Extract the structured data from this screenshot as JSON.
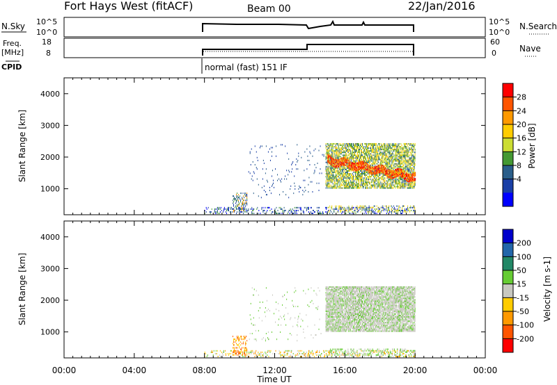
{
  "header": {
    "title": "Fort Hays West (fitACF)",
    "beam": "Beam 00",
    "date": "22/Jan/2016"
  },
  "aux_panels": {
    "nsky_label": "N.Sky",
    "nsky_ticks": [
      "10^5",
      "10^0"
    ],
    "nsky_right_ticks": [
      "10^5",
      "10^0"
    ],
    "nsearch_label": "N.Search",
    "freq_label": "Freq.",
    "freq_unit": "[MHz]",
    "freq_ticks": [
      "18",
      "8"
    ],
    "nave_ticks": [
      "60",
      "0"
    ],
    "nave_label": "Nave",
    "cpid_label": "CPID",
    "cpid_text": "normal (fast) 151 IF"
  },
  "x_axis": {
    "label": "Time UT",
    "ticks": [
      "00:00",
      "04:00",
      "08:00",
      "12:00",
      "16:00",
      "20:00",
      "00:00"
    ],
    "tick_hours": [
      0,
      4,
      8,
      12,
      16,
      20,
      24
    ]
  },
  "chart_data": [
    {
      "type": "heatmap",
      "name": "power",
      "ylabel": "Slant Range [km]",
      "yticks": [
        1000,
        2000,
        3000,
        4000
      ],
      "ylim": [
        180,
        4500
      ],
      "xlim_hours": [
        0,
        24
      ],
      "colorbar": {
        "label": "Power [dB]",
        "ticks": [
          "28",
          "24",
          "20",
          "16",
          "12",
          "8",
          "4"
        ],
        "colors": [
          "#ff0000",
          "#ff5500",
          "#ff9900",
          "#ffcc00",
          "#ccdd33",
          "#449933",
          "#2a5e8a",
          "#1a3fa6",
          "#0000ff"
        ]
      },
      "regions": [
        {
          "t0": 8.0,
          "t1": 20.0,
          "r0": 200,
          "r1": 420,
          "density": 0.25,
          "palette": [
            6,
            7,
            8,
            5
          ]
        },
        {
          "t0": 9.6,
          "t1": 10.4,
          "r0": 250,
          "r1": 850,
          "density": 0.35,
          "palette": [
            6,
            5,
            2,
            7
          ]
        },
        {
          "t0": 14.9,
          "t1": 20.0,
          "r0": 1000,
          "r1": 2400,
          "density": 0.7,
          "palette": [
            4,
            3,
            5,
            6
          ]
        },
        {
          "t0": 15.0,
          "t1": 20.0,
          "r0": 250,
          "r1": 450,
          "density": 0.3,
          "palette": [
            3,
            4,
            6
          ]
        },
        {
          "t0": 10.5,
          "t1": 14.8,
          "r0": 700,
          "r1": 2400,
          "density": 0.04,
          "palette": [
            7,
            6
          ]
        }
      ],
      "band": {
        "t0": 15.0,
        "t1": 20.0,
        "r_start": 1900,
        "r_end": 1350,
        "width": 260,
        "palette": [
          0,
          1,
          2
        ]
      }
    },
    {
      "type": "heatmap",
      "name": "velocity",
      "ylabel": "Slant Range [km]",
      "yticks": [
        1000,
        2000,
        3000,
        4000
      ],
      "ylim": [
        180,
        4500
      ],
      "xlim_hours": [
        0,
        24
      ],
      "colorbar": {
        "label": "Velocity [m s-1]",
        "ticks": [
          "200",
          "100",
          "50",
          "15",
          "-15",
          "-50",
          "-100",
          "-200"
        ],
        "colors": [
          "#0000cc",
          "#2266aa",
          "#228866",
          "#66cc33",
          "#c8c8c0",
          "#ffcc00",
          "#ff9900",
          "#ff5500",
          "#ff0000"
        ]
      },
      "regions": [
        {
          "t0": 8.0,
          "t1": 20.0,
          "r0": 200,
          "r1": 420,
          "density": 0.25,
          "palette": [
            6,
            5,
            3,
            4
          ]
        },
        {
          "t0": 9.6,
          "t1": 10.4,
          "r0": 250,
          "r1": 850,
          "density": 0.35,
          "palette": [
            6,
            7,
            5
          ]
        },
        {
          "t0": 14.9,
          "t1": 20.0,
          "r0": 1000,
          "r1": 2400,
          "density": 0.85,
          "palette": [
            4,
            4,
            4,
            3
          ]
        },
        {
          "t0": 15.0,
          "t1": 20.0,
          "r0": 250,
          "r1": 450,
          "density": 0.3,
          "palette": [
            3,
            4
          ]
        },
        {
          "t0": 10.5,
          "t1": 14.8,
          "r0": 700,
          "r1": 2400,
          "density": 0.03,
          "palette": [
            3,
            4
          ]
        }
      ]
    }
  ]
}
